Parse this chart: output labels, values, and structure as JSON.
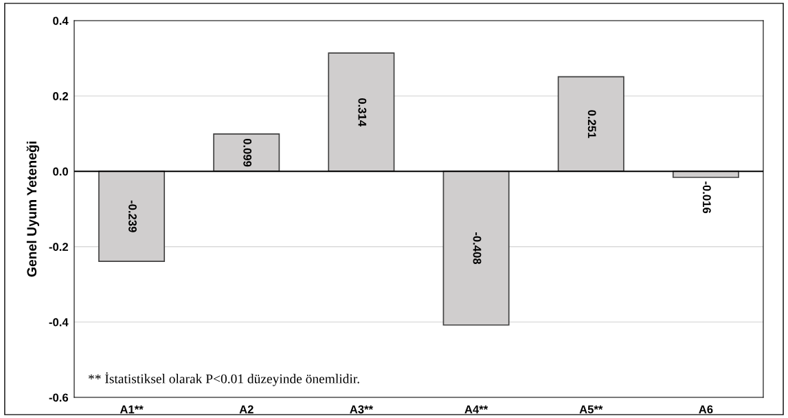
{
  "chart_data": {
    "type": "bar",
    "ylabel": "Genel Uyum Yeteneği",
    "categories": [
      "A1**",
      "A2",
      "A3**",
      "A4**",
      "A5**",
      "A6"
    ],
    "values": [
      -0.239,
      0.099,
      0.314,
      -0.408,
      0.251,
      -0.016
    ],
    "color": "#d0cece",
    "data_labels": true,
    "ylim": [
      -0.6,
      0.4
    ],
    "yticks": [
      {
        "value": -0.6,
        "label": "-0.6"
      },
      {
        "value": -0.4,
        "label": "-0.4"
      },
      {
        "value": -0.2,
        "label": "-0.2"
      },
      {
        "value": 0,
        "label": "0.0"
      },
      {
        "value": 0.2,
        "label": "0.2"
      },
      {
        "value": 0.4,
        "label": "0.4"
      }
    ],
    "grid": "y",
    "legend": false,
    "annotations": [
      "** İstatistiksel olarak P<0.01 düzeyinde önemlidir."
    ]
  }
}
